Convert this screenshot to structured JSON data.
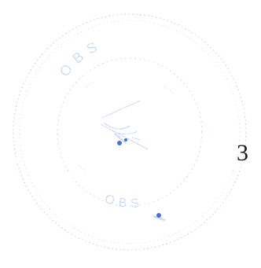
{
  "document": {
    "page_number": "3",
    "seal": {
      "icon": "circular-stamp-icon",
      "color": "#3f6fd8",
      "text_top": "OBS",
      "text_bottom": "OBS",
      "faded": true
    }
  }
}
